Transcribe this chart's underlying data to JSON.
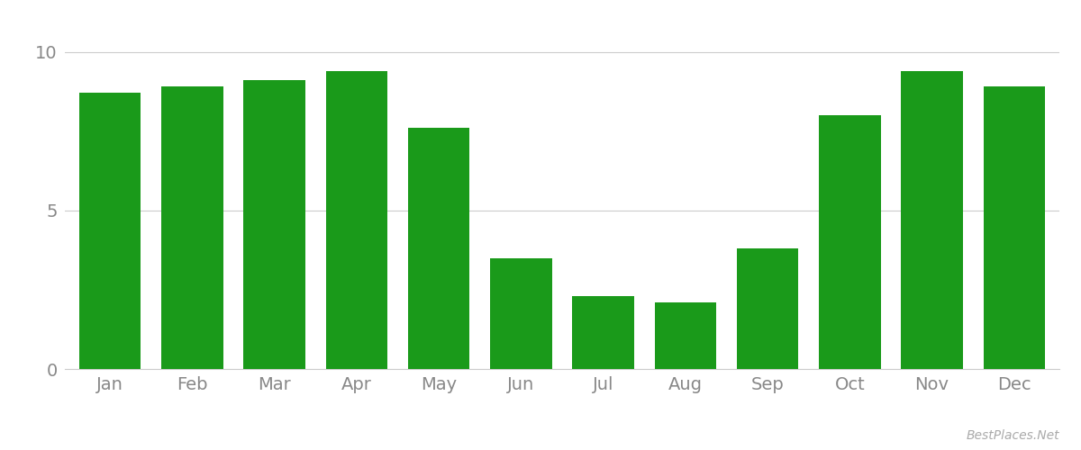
{
  "categories": [
    "Jan",
    "Feb",
    "Mar",
    "Apr",
    "May",
    "Jun",
    "Jul",
    "Aug",
    "Sep",
    "Oct",
    "Nov",
    "Dec"
  ],
  "values": [
    8.7,
    8.9,
    9.1,
    9.4,
    7.6,
    3.5,
    2.3,
    2.1,
    3.8,
    8.0,
    9.4,
    8.9
  ],
  "bar_color": "#1a9a1a",
  "background_color": "#ffffff",
  "grid_color": "#cccccc",
  "yticks": [
    0,
    5,
    10
  ],
  "ylim": [
    0,
    10.5
  ],
  "tick_color": "#888888",
  "watermark": "BestPlaces.Net",
  "watermark_color": "#aaaaaa",
  "watermark_fontsize": 10,
  "bar_width": 0.75,
  "tick_fontsize": 14
}
